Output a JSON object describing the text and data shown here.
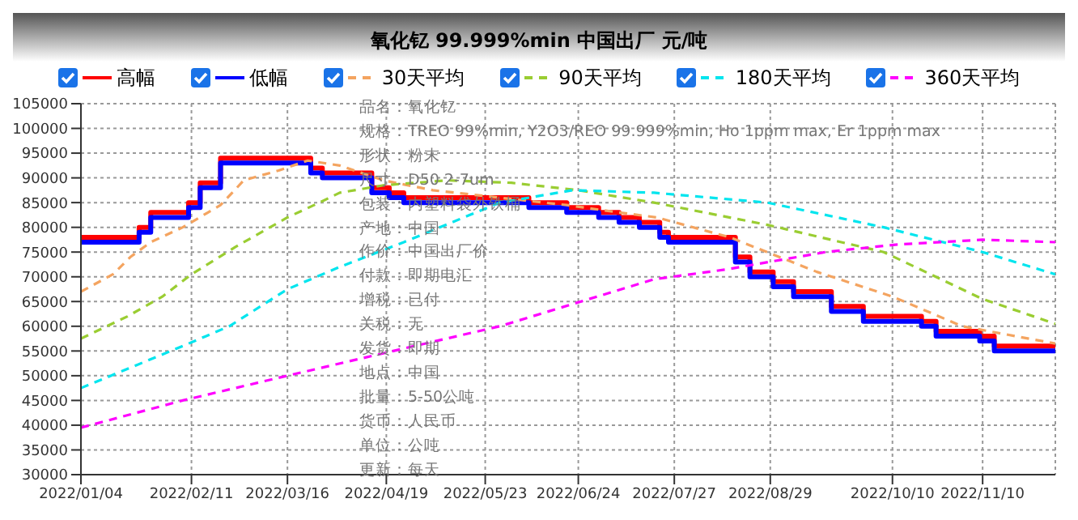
{
  "chart_data": {
    "type": "line",
    "title": "氧化钇 99.999%min 中国出厂 元/吨",
    "legend": "top",
    "grid": true,
    "marker": "none",
    "xlim": [
      "2022-01-04",
      "2022-12-05"
    ],
    "xticks": [
      {
        "value": "2022-01-04",
        "label": "2022/01/04"
      },
      {
        "value": "2022-02-11",
        "label": "2022/02/11"
      },
      {
        "value": "2022-03-16",
        "label": "2022/03/16"
      },
      {
        "value": "2022-04-19",
        "label": "2022/04/19"
      },
      {
        "value": "2022-05-23",
        "label": "2022/05/23"
      },
      {
        "value": "2022-06-24",
        "label": "2022/06/24"
      },
      {
        "value": "2022-07-27",
        "label": "2022/07/27"
      },
      {
        "value": "2022-08-29",
        "label": "2022/08/29"
      },
      {
        "value": "2022-10-10",
        "label": "2022/10/10"
      },
      {
        "value": "2022-11-10",
        "label": "2022/11/10"
      }
    ],
    "ylim": [
      30000,
      105000
    ],
    "yticks": [
      30000,
      35000,
      40000,
      45000,
      50000,
      55000,
      60000,
      65000,
      70000,
      75000,
      80000,
      85000,
      90000,
      95000,
      100000,
      105000
    ],
    "series": [
      {
        "name": "高幅",
        "color": "#ff0000",
        "type": "step",
        "line_style": "solid",
        "x": [
          "2022-01-04",
          "2022-01-24",
          "2022-01-28",
          "2022-02-10",
          "2022-02-14",
          "2022-02-21",
          "2022-03-24",
          "2022-03-28",
          "2022-04-14",
          "2022-04-20",
          "2022-04-25",
          "2022-06-07",
          "2022-06-20",
          "2022-07-01",
          "2022-07-08",
          "2022-07-15",
          "2022-07-22",
          "2022-07-25",
          "2022-08-17",
          "2022-08-22",
          "2022-08-30",
          "2022-09-06",
          "2022-09-19",
          "2022-09-30",
          "2022-10-11",
          "2022-10-20",
          "2022-10-25",
          "2022-11-09",
          "2022-11-14",
          "2022-12-05"
        ],
        "values": [
          78000,
          80000,
          83000,
          85000,
          89000,
          94000,
          92000,
          91000,
          88000,
          87000,
          86000,
          85000,
          84000,
          83000,
          82000,
          81000,
          79000,
          78000,
          74000,
          71000,
          69000,
          67000,
          64000,
          62000,
          62000,
          61000,
          59000,
          58000,
          56000,
          56000
        ]
      },
      {
        "name": "低幅",
        "color": "#0000ff",
        "type": "step",
        "line_style": "solid",
        "x": [
          "2022-01-04",
          "2022-01-24",
          "2022-01-28",
          "2022-02-10",
          "2022-02-14",
          "2022-02-21",
          "2022-03-24",
          "2022-03-28",
          "2022-04-14",
          "2022-04-20",
          "2022-04-25",
          "2022-06-07",
          "2022-06-20",
          "2022-07-01",
          "2022-07-08",
          "2022-07-15",
          "2022-07-22",
          "2022-07-25",
          "2022-08-17",
          "2022-08-22",
          "2022-08-30",
          "2022-09-06",
          "2022-09-19",
          "2022-09-30",
          "2022-10-11",
          "2022-10-20",
          "2022-10-25",
          "2022-11-09",
          "2022-11-14",
          "2022-12-05"
        ],
        "values": [
          77000,
          79000,
          82000,
          84000,
          88000,
          93000,
          91000,
          90000,
          87000,
          86000,
          85000,
          84000,
          83000,
          82000,
          81000,
          80000,
          78000,
          77000,
          73000,
          70000,
          68000,
          66000,
          63000,
          61000,
          61000,
          60000,
          58000,
          57000,
          55000,
          55000
        ]
      },
      {
        "name": "30天平均",
        "color": "#f4a460",
        "line_style": "dashed",
        "x": [
          "2022-01-04",
          "2022-01-15",
          "2022-01-21",
          "2022-01-28",
          "2022-02-08",
          "2022-02-21",
          "2022-03-01",
          "2022-03-13",
          "2022-03-23",
          "2022-04-03",
          "2022-04-18",
          "2022-05-05",
          "2022-05-28",
          "2022-06-20",
          "2022-07-08",
          "2022-07-21",
          "2022-08-15",
          "2022-09-14",
          "2022-10-10",
          "2022-11-03",
          "2022-12-05"
        ],
        "values": [
          67000,
          70500,
          74000,
          77000,
          80000,
          84500,
          89500,
          91500,
          93500,
          92500,
          89500,
          87500,
          86000,
          84500,
          83000,
          82000,
          78000,
          71000,
          66000,
          60000,
          56500
        ]
      },
      {
        "name": "90天平均",
        "color": "#9acd32",
        "line_style": "dashed",
        "x": [
          "2022-01-04",
          "2022-01-20",
          "2022-02-01",
          "2022-02-11",
          "2022-02-26",
          "2022-03-16",
          "2022-03-27",
          "2022-04-03",
          "2022-04-18",
          "2022-05-10",
          "2022-06-01",
          "2022-06-24",
          "2022-07-20",
          "2022-08-28",
          "2022-10-07",
          "2022-11-10",
          "2022-12-05"
        ],
        "values": [
          57500,
          62000,
          66000,
          70500,
          76000,
          82000,
          85000,
          87000,
          88500,
          89500,
          89000,
          87500,
          85000,
          80500,
          75000,
          65500,
          60500
        ]
      },
      {
        "name": "180天平均",
        "color": "#00e5ee",
        "line_style": "dashed",
        "x": [
          "2022-01-04",
          "2022-02-08",
          "2022-02-24",
          "2022-03-16",
          "2022-04-03",
          "2022-04-25",
          "2022-05-28",
          "2022-06-22",
          "2022-07-20",
          "2022-08-28",
          "2022-10-07",
          "2022-11-10",
          "2022-12-05"
        ],
        "values": [
          47500,
          56000,
          60000,
          67500,
          72000,
          77000,
          85000,
          87500,
          87000,
          85000,
          80000,
          75000,
          70500
        ]
      },
      {
        "name": "360天平均",
        "color": "#ff00ff",
        "line_style": "dashed",
        "x": [
          "2022-01-04",
          "2022-02-08",
          "2022-03-16",
          "2022-04-25",
          "2022-05-28",
          "2022-07-20",
          "2022-08-14",
          "2022-09-17",
          "2022-10-11",
          "2022-11-10",
          "2022-12-05"
        ],
        "values": [
          39500,
          45000,
          50000,
          55500,
          60000,
          69500,
          71500,
          75000,
          76500,
          77500,
          77000
        ]
      }
    ],
    "annotations": [
      "品名：氧化钇",
      "规格：TREO 99%min, Y2O3/REO 99.999%min, Ho 1ppm max, Er 1ppm max",
      "形状：粉末",
      "尺寸：D50 2-7um",
      "包装：内塑料袋外铁桶",
      "产地：中国",
      "作价：中国出厂价",
      "付款：即期电汇",
      "增税：已付",
      "关税：无",
      "发货：即期",
      "地点：中国",
      "批量：5-50公吨",
      "货币：人民币",
      "单位：公吨",
      "更新：每天"
    ]
  }
}
